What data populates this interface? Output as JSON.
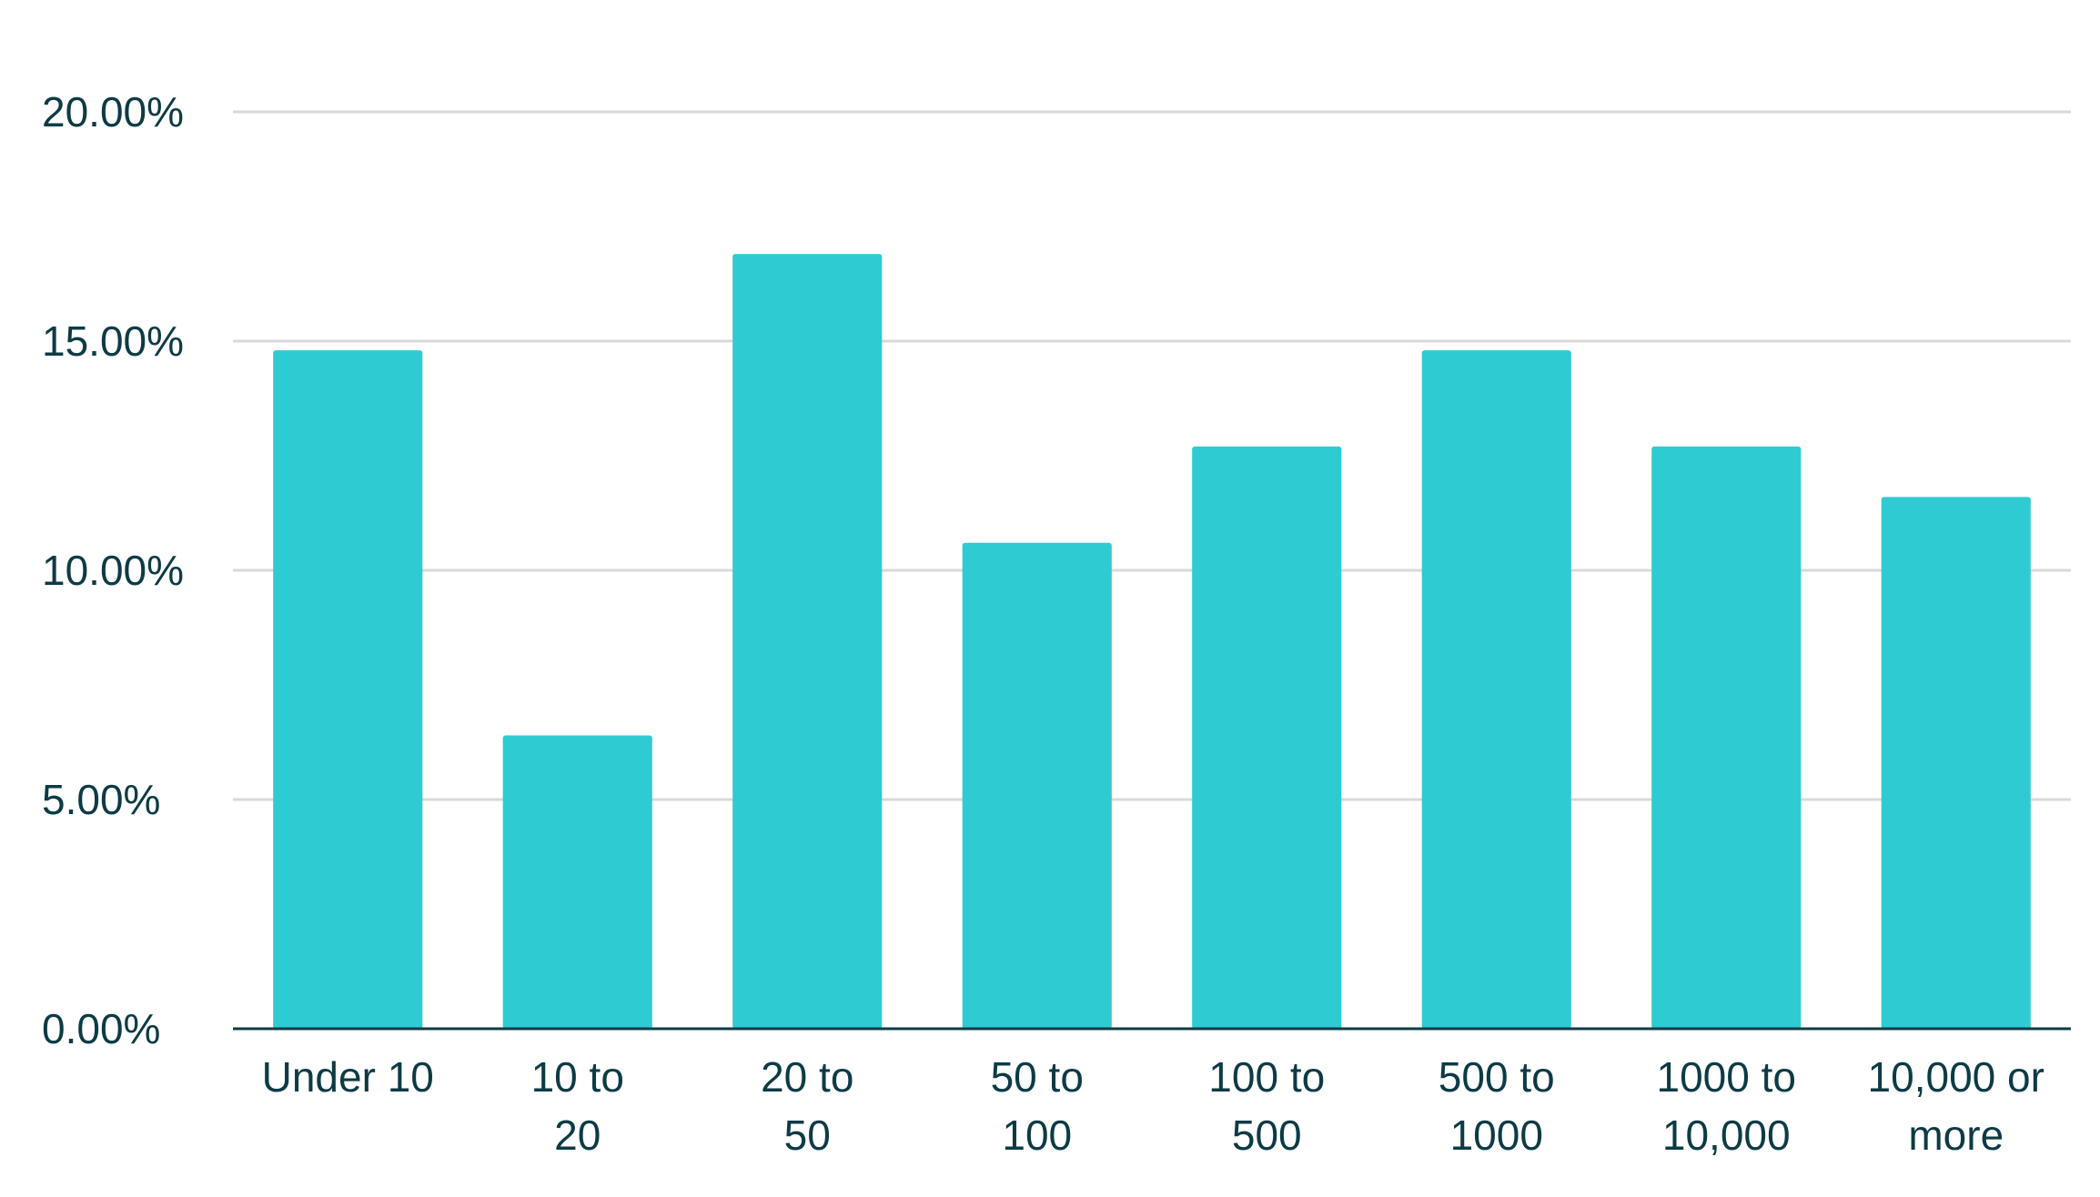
{
  "chart_data": {
    "type": "bar",
    "categories": [
      [
        "Under 10"
      ],
      [
        "10 to",
        "20"
      ],
      [
        "20 to",
        "50"
      ],
      [
        "50 to",
        "100"
      ],
      [
        "100 to",
        "500"
      ],
      [
        "500 to",
        "1000"
      ],
      [
        "1000 to",
        "10,000"
      ],
      [
        "10,000 or",
        "more"
      ]
    ],
    "values": [
      14.8,
      6.4,
      16.9,
      10.6,
      12.7,
      14.8,
      12.7,
      11.6
    ],
    "y_tick_labels": [
      "0.00%",
      "5.00%",
      "10.00%",
      "15.00%",
      "20.00%"
    ],
    "y_ticks": [
      0,
      5,
      10,
      15,
      20
    ],
    "ylim": [
      0,
      20
    ],
    "title": "",
    "xlabel": "",
    "ylabel": "",
    "grid": true,
    "legend": "none",
    "colors": {
      "bar": "#2ecbd3",
      "grid": "#d9d9d9",
      "axis": "#0d3b45",
      "text": "#0d3b45"
    }
  }
}
